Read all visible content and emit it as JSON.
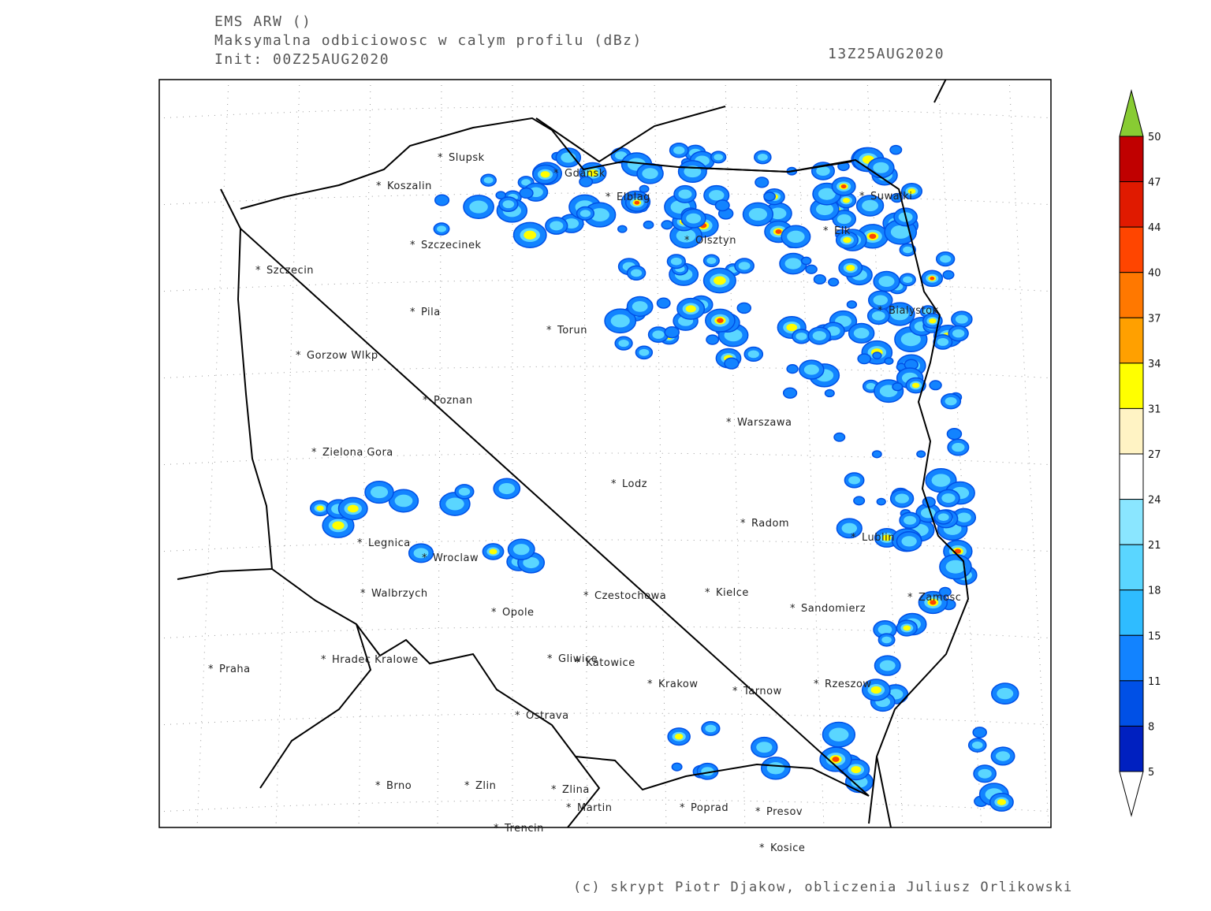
{
  "header": {
    "lines": [
      "EMS ARW ()",
      "Maksymalna odbiciowosc w calym profilu (dBz)",
      "Init: 00Z25AUG2020"
    ],
    "valid_time": "13Z25AUG2020"
  },
  "map": {
    "cities": [
      "Slupsk",
      "Koszalin",
      "Gdansk",
      "Elblag",
      "Suwalki",
      "Szczecinek",
      "Olsztyn",
      "Elk",
      "Szczecin",
      "Pila",
      "Torun",
      "Bialystok",
      "Gorzow Wlkp",
      "Poznan",
      "Warszawa",
      "Zielona Gora",
      "Lodz",
      "Radom",
      "Lublin",
      "Legnica",
      "Wroclaw",
      "Kielce",
      "Walbrzych",
      "Czestochowa",
      "Zamosc",
      "Opole",
      "Sandomierz",
      "Praha",
      "Hradec Kralowe",
      "Gliwice",
      "Katowice",
      "Krakow",
      "Rzeszow",
      "Tarnow",
      "Ostrava",
      "Brno",
      "Zlin",
      "Zlina",
      "Martin",
      "Poprad",
      "Presov",
      "Trencin",
      "Kosice"
    ]
  },
  "colorbar": {
    "levels": [
      50,
      47,
      44,
      40,
      37,
      34,
      31,
      27,
      24,
      21,
      18,
      15,
      11,
      8,
      5
    ],
    "colors": [
      "#c00000",
      "#e01a00",
      "#ff4500",
      "#ff7800",
      "#ffa000",
      "#ffff00",
      "#fff3c4",
      "#ffffff",
      "#8ae6ff",
      "#5ad6ff",
      "#2fbcff",
      "#1283ff",
      "#0050e6",
      "#0020c0"
    ],
    "top_color": "#88cc33",
    "bottom_color": "#ffffff"
  },
  "footer": "(c) skrypt Piotr Djakow, obliczenia Juliusz Orlikowski"
}
